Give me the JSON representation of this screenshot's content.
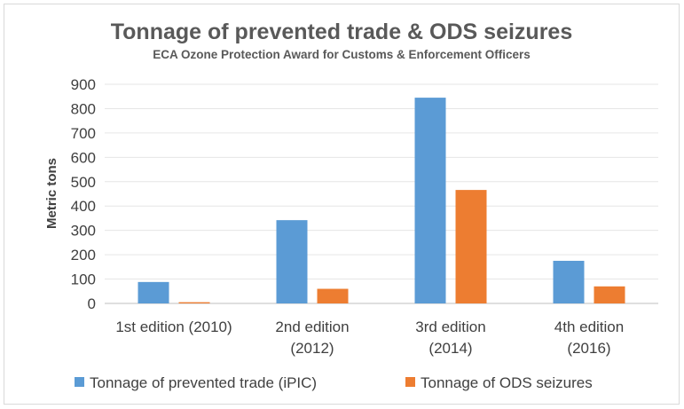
{
  "chart_data": {
    "type": "bar",
    "title": "Tonnage of prevented trade & ODS seizures",
    "subtitle": "ECA Ozone Protection Award for Customs & Enforcement Officers",
    "ylabel": "Metric tons",
    "xlabel": "",
    "ylim": [
      0,
      900
    ],
    "yticks": [
      0,
      100,
      200,
      300,
      400,
      500,
      600,
      700,
      800,
      900
    ],
    "categories": [
      [
        "1st edition (2010)"
      ],
      [
        "2nd edition",
        "(2012)"
      ],
      [
        "3rd edition",
        "(2014)"
      ],
      [
        "4th edition",
        "(2016)"
      ]
    ],
    "series": [
      {
        "name": "Tonnage of prevented trade (iPIC)",
        "color": "#5b9bd5",
        "values": [
          88,
          342,
          845,
          175
        ]
      },
      {
        "name": "Tonnage of ODS seizures",
        "color": "#ed7d31",
        "values": [
          5,
          60,
          466,
          70
        ]
      }
    ],
    "grid": true,
    "legend_position": "bottom"
  }
}
